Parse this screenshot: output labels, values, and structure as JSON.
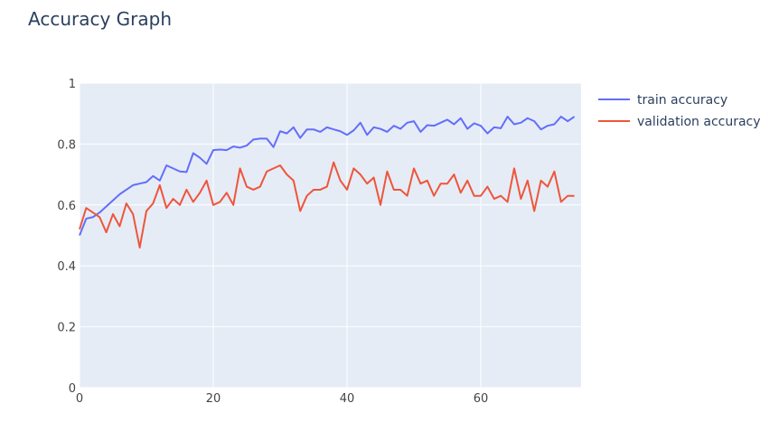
{
  "chart_data": {
    "type": "line",
    "title": "Accuracy Graph",
    "xlabel": "",
    "ylabel": "",
    "xlim": [
      0,
      75
    ],
    "ylim": [
      0,
      1
    ],
    "xticks": [
      0,
      20,
      40,
      60
    ],
    "yticks": [
      0,
      0.2,
      0.4,
      0.6,
      0.8,
      1
    ],
    "ytick_labels": [
      "0",
      "0.2",
      "0.4",
      "0.6",
      "0.8",
      "1"
    ],
    "grid": true,
    "legend": "right",
    "background": "#e5ecf6",
    "series": [
      {
        "name": "train accuracy",
        "color": "#636efa",
        "values": [
          0.5,
          0.555,
          0.56,
          0.575,
          0.595,
          0.615,
          0.635,
          0.65,
          0.665,
          0.67,
          0.675,
          0.695,
          0.68,
          0.73,
          0.72,
          0.71,
          0.708,
          0.77,
          0.755,
          0.735,
          0.78,
          0.782,
          0.78,
          0.792,
          0.788,
          0.795,
          0.815,
          0.818,
          0.818,
          0.79,
          0.842,
          0.835,
          0.855,
          0.82,
          0.848,
          0.848,
          0.84,
          0.855,
          0.848,
          0.842,
          0.83,
          0.845,
          0.87,
          0.83,
          0.855,
          0.85,
          0.84,
          0.86,
          0.85,
          0.87,
          0.875,
          0.84,
          0.862,
          0.86,
          0.87,
          0.88,
          0.865,
          0.885,
          0.85,
          0.868,
          0.86,
          0.835,
          0.855,
          0.852,
          0.89,
          0.865,
          0.87,
          0.885,
          0.875,
          0.848,
          0.86,
          0.865,
          0.89,
          0.875,
          0.89
        ]
      },
      {
        "name": "validation accuracy",
        "color": "#ef553b",
        "values": [
          0.52,
          0.59,
          0.575,
          0.56,
          0.51,
          0.57,
          0.53,
          0.605,
          0.57,
          0.46,
          0.58,
          0.605,
          0.665,
          0.59,
          0.62,
          0.6,
          0.65,
          0.61,
          0.64,
          0.68,
          0.6,
          0.61,
          0.64,
          0.6,
          0.72,
          0.66,
          0.65,
          0.66,
          0.71,
          0.72,
          0.73,
          0.7,
          0.68,
          0.58,
          0.63,
          0.65,
          0.65,
          0.66,
          0.74,
          0.68,
          0.65,
          0.72,
          0.7,
          0.67,
          0.69,
          0.6,
          0.71,
          0.65,
          0.65,
          0.63,
          0.72,
          0.67,
          0.68,
          0.63,
          0.67,
          0.67,
          0.7,
          0.64,
          0.68,
          0.63,
          0.63,
          0.66,
          0.62,
          0.63,
          0.61,
          0.72,
          0.62,
          0.68,
          0.58,
          0.68,
          0.66,
          0.71,
          0.61,
          0.63,
          0.63
        ]
      }
    ]
  }
}
